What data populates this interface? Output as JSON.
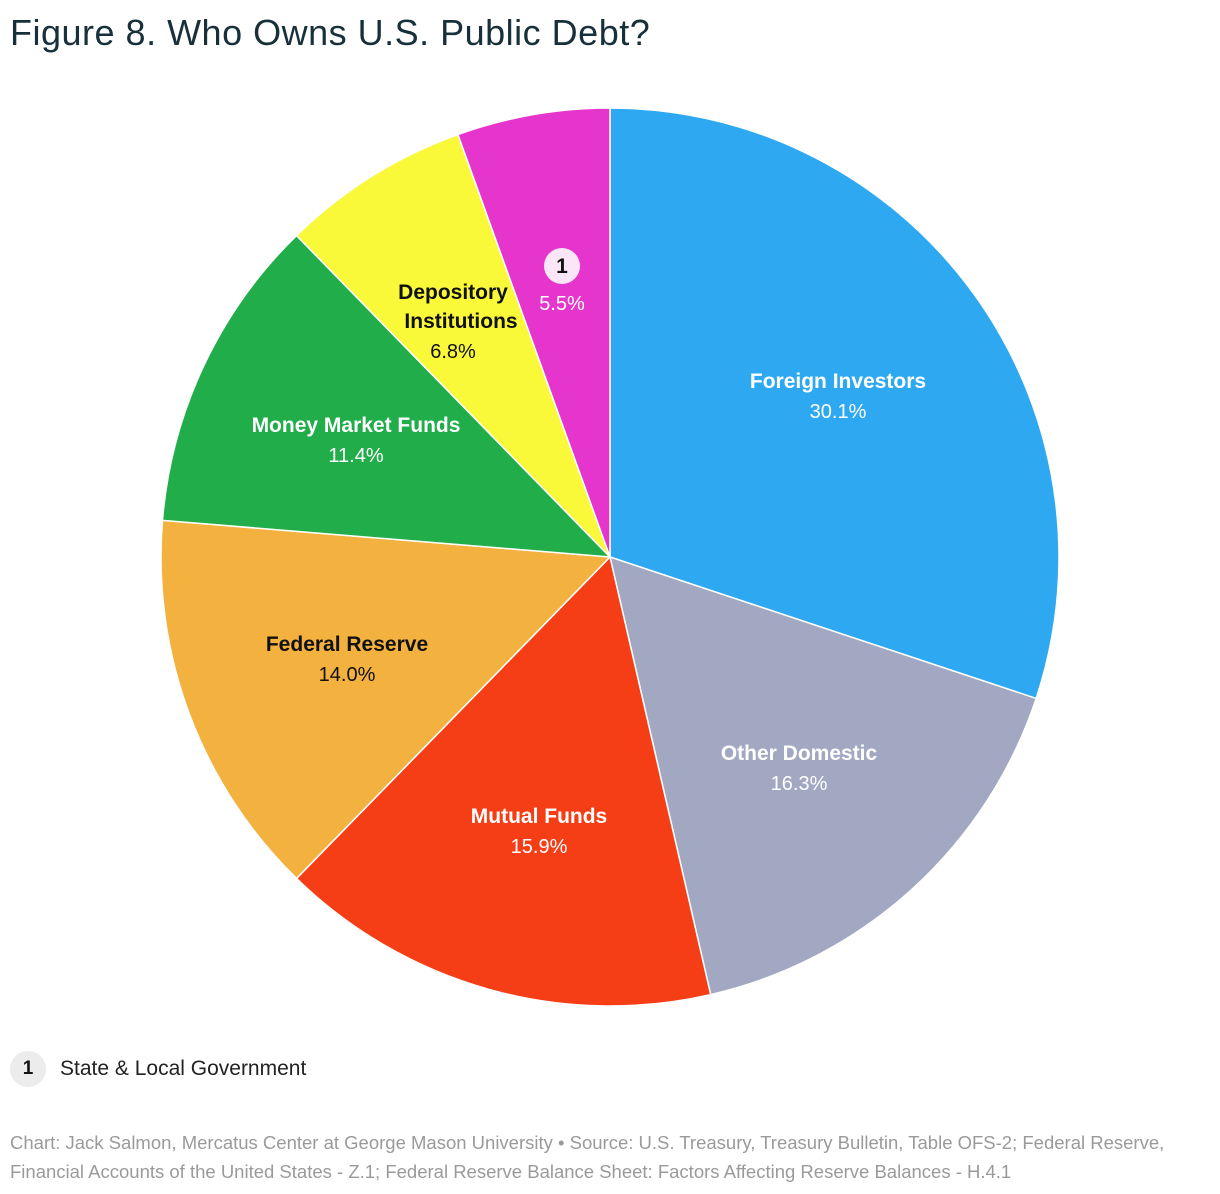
{
  "title": "Figure 8. Who Owns U.S. Public Debt?",
  "chart_data": {
    "type": "pie",
    "title": "Figure 8. Who Owns U.S. Public Debt?",
    "slices": [
      {
        "label": "Foreign Investors",
        "value": 30.1,
        "value_label": "30.1%",
        "color": "#2ea9f1",
        "label_color": "#ffffff"
      },
      {
        "label": "Other Domestic",
        "value": 16.3,
        "value_label": "16.3%",
        "color": "#a2a8c2",
        "label_color": "#ffffff"
      },
      {
        "label": "Mutual Funds",
        "value": 15.9,
        "value_label": "15.9%",
        "color": "#f53d16",
        "label_color": "#ffffff"
      },
      {
        "label": "Federal Reserve",
        "value": 14.0,
        "value_label": "14.0%",
        "color": "#f3b13f",
        "label_color": "#111111"
      },
      {
        "label": "Money Market Funds",
        "value": 11.4,
        "value_label": "11.4%",
        "color": "#20ad4a",
        "label_color": "#ffffff"
      },
      {
        "label": "Depository Institutions",
        "value": 6.8,
        "value_label": "6.8%",
        "color": "#f9f93a",
        "label_color": "#111111"
      },
      {
        "label": "1",
        "value": 5.5,
        "value_label": "5.5%",
        "color": "#e535cc",
        "label_color": "#ffffff",
        "footnote_marker": true
      }
    ],
    "footnote": {
      "marker": "1",
      "text": "State & Local Government"
    }
  },
  "credit": "Chart: Jack Salmon, Mercatus Center at George Mason University • Source: U.S. Treasury, Treasury Bulletin, Table OFS-2; Federal Reserve, Financial Accounts of the United States - Z.1; Federal Reserve Balance Sheet: Factors Affecting Reserve Balances - H.4.1"
}
